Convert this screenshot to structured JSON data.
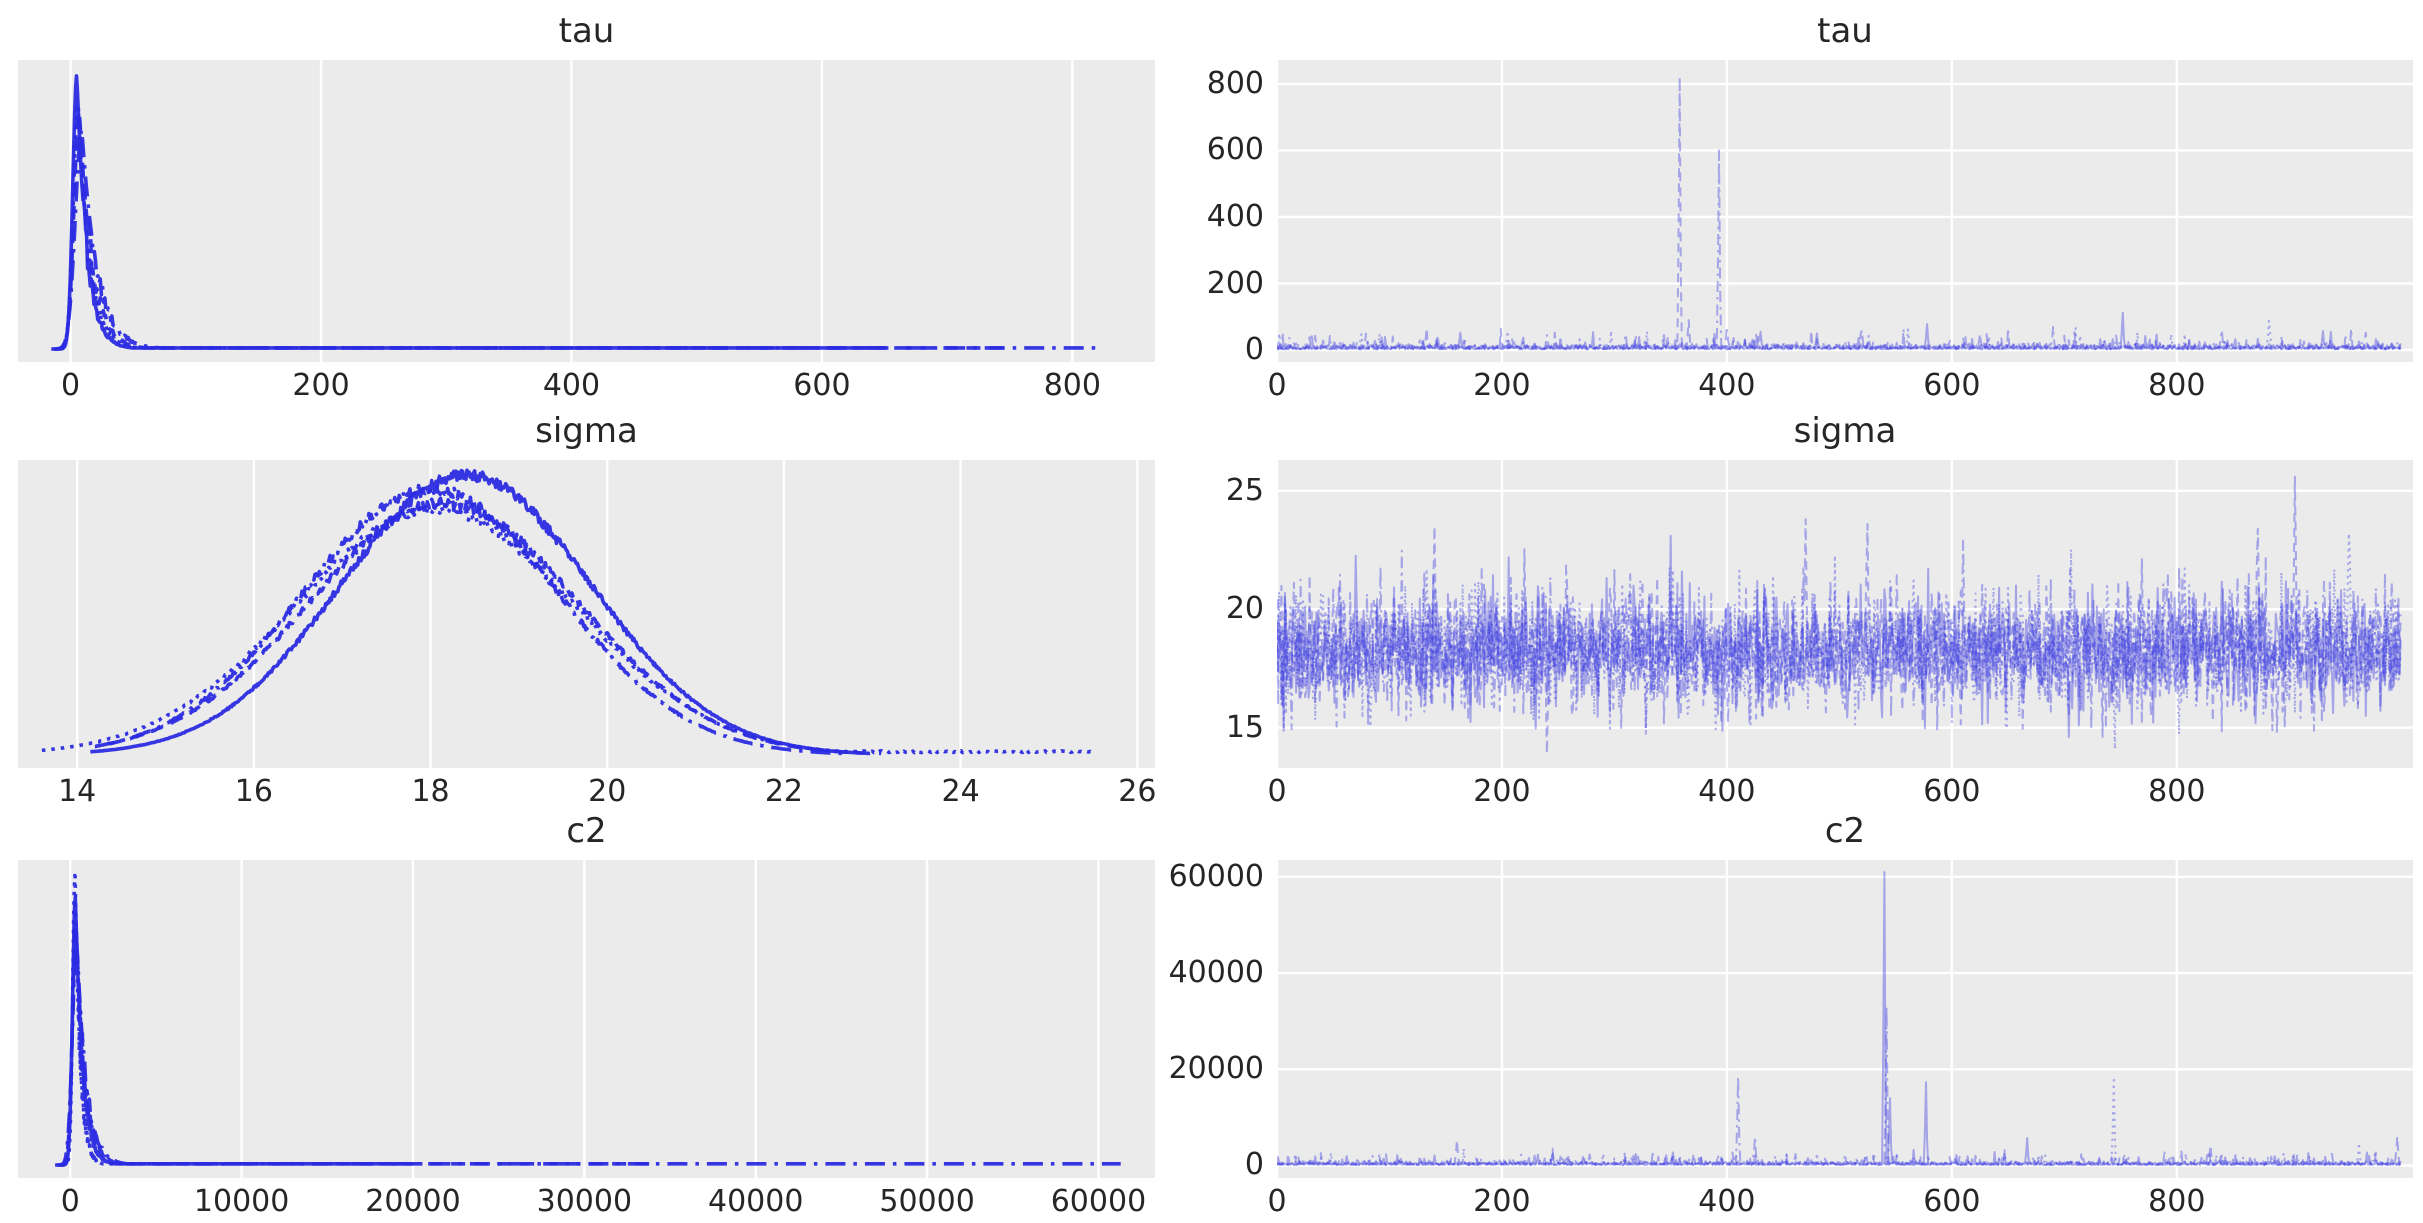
{
  "figure": {
    "kind": "mcmc-trace-plot",
    "n_chains": 4,
    "variables": [
      "tau",
      "sigma",
      "c2"
    ]
  },
  "style": {
    "figure_bg": "#ffffff",
    "axes_bg": "#ebebeb",
    "grid_color": "#ffffff",
    "kde_color": "#2b2be2",
    "kde_alpha": 0.95,
    "trace_color": "#3939e0",
    "trace_alpha": 0.4,
    "text_color": "#262626",
    "linestyles": [
      "solid",
      "dashed",
      "dashdot",
      "dotted"
    ]
  },
  "chart_data": [
    {
      "var": "tau",
      "density": {
        "type": "line",
        "kind": "peak",
        "title": "tau",
        "x_ticks": [
          0,
          200,
          400,
          600,
          800
        ],
        "x_range": [
          -42,
          866
        ],
        "tail_level": 0.004,
        "chains": [
          {
            "style": "solid",
            "x0": 5,
            "rise": 3.2,
            "decay": 8,
            "peak": 1.0,
            "xmax": 650
          },
          {
            "style": "dashed",
            "x0": 7,
            "rise": 4.2,
            "decay": 10,
            "peak": 0.87,
            "xmax": 745
          },
          {
            "style": "dashdot",
            "x0": 9,
            "rise": 5.2,
            "decay": 12,
            "peak": 0.8,
            "xmax": 822
          },
          {
            "style": "dotted",
            "x0": 6,
            "rise": 3.8,
            "decay": 9,
            "peak": 0.9,
            "xmax": 520
          }
        ]
      },
      "trace": {
        "type": "line",
        "kind": "trace",
        "title": "tau",
        "n": 1000,
        "x_ticks": [
          0,
          200,
          400,
          600,
          800
        ],
        "x_range": [
          0,
          1010
        ],
        "y_ticks": [
          0,
          200,
          400,
          600,
          800
        ],
        "y_range": [
          -36,
          872
        ],
        "noise": {
          "dist": "halfnormal",
          "loc": 2,
          "scale": 7,
          "burst_prob": 0.035,
          "burst_add": 15,
          "burst_scale": 18,
          "clip_max": 68
        },
        "spikes": [
          {
            "x": 75,
            "y": 48,
            "c": 3
          },
          {
            "x": 133,
            "y": 66,
            "c": 1
          },
          {
            "x": 163,
            "y": 52,
            "c": 0
          },
          {
            "x": 205,
            "y": 57,
            "c": 3
          },
          {
            "x": 240,
            "y": 45,
            "c": 2
          },
          {
            "x": 310,
            "y": 48,
            "c": 2
          },
          {
            "x": 358,
            "y": 820,
            "c": 1
          },
          {
            "x": 366,
            "y": 90,
            "c": 1
          },
          {
            "x": 393,
            "y": 600,
            "c": 2
          },
          {
            "x": 400,
            "y": 70,
            "c": 2
          },
          {
            "x": 430,
            "y": 55,
            "c": 0
          },
          {
            "x": 480,
            "y": 50,
            "c": 0
          },
          {
            "x": 520,
            "y": 60,
            "c": 1
          },
          {
            "x": 578,
            "y": 78,
            "c": 0
          },
          {
            "x": 625,
            "y": 50,
            "c": 1
          },
          {
            "x": 690,
            "y": 70,
            "c": 2
          },
          {
            "x": 752,
            "y": 112,
            "c": 0
          },
          {
            "x": 795,
            "y": 48,
            "c": 3
          },
          {
            "x": 840,
            "y": 60,
            "c": 2
          },
          {
            "x": 882,
            "y": 88,
            "c": 3
          },
          {
            "x": 930,
            "y": 57,
            "c": 0
          },
          {
            "x": 968,
            "y": 52,
            "c": 1
          }
        ]
      }
    },
    {
      "var": "sigma",
      "density": {
        "type": "line",
        "kind": "gauss",
        "title": "sigma",
        "x_ticks": [
          14,
          16,
          18,
          20,
          22,
          24,
          26
        ],
        "x_range": [
          13.33,
          26.2
        ],
        "chains": [
          {
            "style": "solid",
            "center": 18.4,
            "sigma": 1.42,
            "height": 1.0,
            "range": [
              14.15,
              22.9
            ]
          },
          {
            "style": "dashed",
            "center": 18.15,
            "sigma": 1.52,
            "height": 0.9,
            "range": [
              14.35,
              23.1
            ]
          },
          {
            "style": "dashdot",
            "center": 18.0,
            "sigma": 1.45,
            "height": 0.95,
            "range": [
              14.2,
              22.75
            ]
          },
          {
            "style": "dotted",
            "center": 18.05,
            "sigma": 1.58,
            "height": 0.88,
            "range": [
              13.6,
              25.5
            ],
            "tail": {
              "from": 22.6,
              "level": 0.012
            }
          }
        ]
      },
      "trace": {
        "type": "line",
        "kind": "trace",
        "title": "sigma",
        "n": 1000,
        "x_ticks": [
          0,
          200,
          400,
          600,
          800
        ],
        "x_range": [
          0,
          1010
        ],
        "y_ticks": [
          15,
          20,
          25
        ],
        "y_range": [
          13.3,
          26.3
        ],
        "noise": {
          "dist": "normal",
          "mean": 18.3,
          "std": 1.3,
          "clip": [
            15.0,
            23.0
          ]
        },
        "spikes": [
          {
            "x": 140,
            "y": 23.5,
            "c": 1
          },
          {
            "x": 240,
            "y": 13.9,
            "c": 1
          },
          {
            "x": 350,
            "y": 23.1,
            "c": 0
          },
          {
            "x": 470,
            "y": 23.8,
            "c": 1
          },
          {
            "x": 525,
            "y": 23.6,
            "c": 1
          },
          {
            "x": 610,
            "y": 22.9,
            "c": 2
          },
          {
            "x": 745,
            "y": 14.1,
            "c": 3
          },
          {
            "x": 872,
            "y": 23.4,
            "c": 1
          },
          {
            "x": 905,
            "y": 25.6,
            "c": 1
          },
          {
            "x": 953,
            "y": 23.2,
            "c": 3
          }
        ]
      }
    },
    {
      "var": "c2",
      "density": {
        "type": "line",
        "kind": "peak",
        "title": "c2",
        "x_ticks": [
          0,
          10000,
          20000,
          30000,
          40000,
          50000,
          60000
        ],
        "x_range": [
          -3050,
          63300
        ],
        "tail_level": 0.004,
        "chains": [
          {
            "style": "solid",
            "x0": 300,
            "rise": 170,
            "decay": 420,
            "peak": 0.92,
            "xmax": 20000
          },
          {
            "style": "dashed",
            "x0": 340,
            "rise": 210,
            "decay": 500,
            "peak": 0.83,
            "xmax": 34000
          },
          {
            "style": "dashdot",
            "x0": 380,
            "rise": 250,
            "decay": 560,
            "peak": 0.78,
            "xmax": 61300
          },
          {
            "style": "dotted",
            "x0": 280,
            "rise": 140,
            "decay": 300,
            "peak": 1.0,
            "xmax": 9000
          }
        ]
      },
      "trace": {
        "type": "line",
        "kind": "trace",
        "title": "c2",
        "n": 1000,
        "x_ticks": [
          0,
          200,
          400,
          600,
          800
        ],
        "x_range": [
          0,
          1010
        ],
        "y_ticks": [
          0,
          20000,
          40000,
          60000
        ],
        "y_range": [
          -2600,
          63500
        ],
        "noise": {
          "dist": "halfnormal",
          "loc": 100,
          "scale": 330,
          "burst_prob": 0.05,
          "burst_add": 700,
          "burst_scale": 900,
          "clip_max": 3600
        },
        "spikes": [
          {
            "x": 160,
            "y": 5300,
            "c": 1
          },
          {
            "x": 245,
            "y": 2500,
            "c": 0
          },
          {
            "x": 278,
            "y": 2300,
            "c": 2
          },
          {
            "x": 352,
            "y": 2700,
            "c": 0
          },
          {
            "x": 410,
            "y": 18500,
            "c": 2
          },
          {
            "x": 425,
            "y": 6000,
            "c": 2
          },
          {
            "x": 505,
            "y": 2400,
            "c": 2
          },
          {
            "x": 540,
            "y": 61000,
            "c": 0
          },
          {
            "x": 542,
            "y": 33000,
            "c": 2
          },
          {
            "x": 545,
            "y": 14000,
            "c": 0
          },
          {
            "x": 577,
            "y": 17300,
            "c": 0
          },
          {
            "x": 667,
            "y": 5700,
            "c": 0
          },
          {
            "x": 744,
            "y": 18400,
            "c": 3
          },
          {
            "x": 830,
            "y": 4300,
            "c": 1
          },
          {
            "x": 895,
            "y": 2600,
            "c": 2
          },
          {
            "x": 962,
            "y": 4700,
            "c": 3
          },
          {
            "x": 996,
            "y": 6000,
            "c": 1
          }
        ]
      }
    }
  ]
}
